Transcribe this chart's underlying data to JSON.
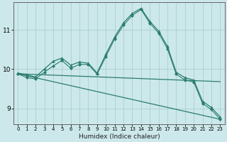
{
  "xlabel": "Humidex (Indice chaleur)",
  "ylabel": "",
  "xlim": [
    -0.5,
    23.5
  ],
  "ylim": [
    8.6,
    11.7
  ],
  "yticks": [
    9,
    10,
    11
  ],
  "xticks": [
    0,
    1,
    2,
    3,
    4,
    5,
    6,
    7,
    8,
    9,
    10,
    11,
    12,
    13,
    14,
    15,
    16,
    17,
    18,
    19,
    20,
    21,
    22,
    23
  ],
  "background_color": "#cce8ea",
  "grid_color": "#aad0d4",
  "line_color": "#2a7d6e",
  "lines": [
    {
      "x": [
        0,
        1,
        2,
        3,
        4,
        5,
        6,
        7,
        8,
        9,
        10,
        11,
        12,
        13,
        14,
        15,
        16,
        17,
        18,
        19,
        20,
        21,
        22,
        23
      ],
      "y": [
        9.9,
        9.85,
        9.8,
        10.0,
        10.2,
        10.28,
        10.1,
        10.18,
        10.15,
        9.9,
        10.38,
        10.82,
        11.18,
        11.42,
        11.55,
        11.22,
        10.97,
        10.58,
        9.92,
        9.78,
        9.72,
        9.18,
        9.02,
        8.78
      ],
      "marker": "^",
      "markersize": 2.5,
      "linewidth": 0.9
    },
    {
      "x": [
        0,
        1,
        2,
        3,
        4,
        5,
        6,
        7,
        8,
        9,
        10,
        11,
        12,
        13,
        14,
        15,
        16,
        17,
        18,
        19,
        20,
        21,
        22,
        23
      ],
      "y": [
        9.88,
        9.78,
        9.75,
        9.92,
        10.08,
        10.22,
        10.02,
        10.12,
        10.12,
        9.87,
        10.32,
        10.77,
        11.12,
        11.37,
        11.52,
        11.17,
        10.92,
        10.52,
        9.87,
        9.72,
        9.67,
        9.12,
        8.97,
        8.72
      ],
      "marker": "D",
      "markersize": 2.0,
      "linewidth": 0.8
    },
    {
      "x": [
        0,
        23
      ],
      "y": [
        9.88,
        9.68
      ],
      "marker": null,
      "markersize": 0,
      "linewidth": 0.9
    },
    {
      "x": [
        0,
        23
      ],
      "y": [
        9.88,
        8.72
      ],
      "marker": null,
      "markersize": 0,
      "linewidth": 0.9
    }
  ]
}
